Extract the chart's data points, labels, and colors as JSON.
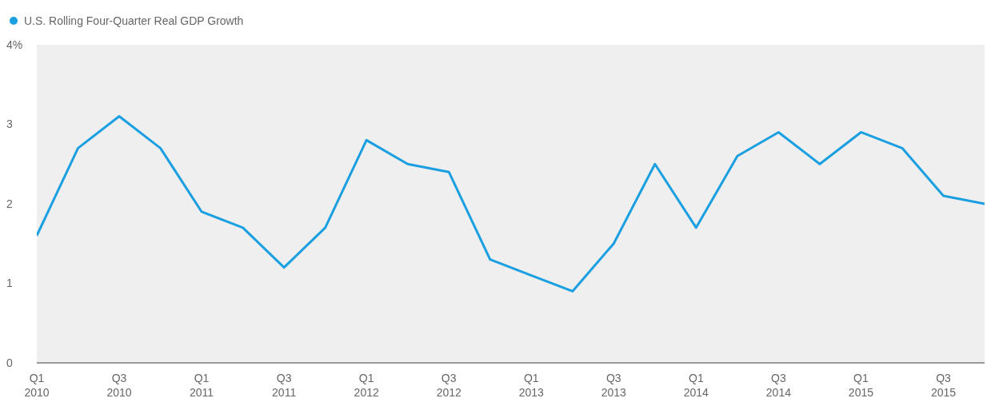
{
  "chart_data": {
    "type": "line",
    "categories": [
      "Q1 2010",
      null,
      "Q3 2010",
      null,
      "Q1 2011",
      null,
      "Q3 2011",
      null,
      "Q1 2012",
      null,
      "Q3 2012",
      null,
      "Q1 2013",
      null,
      "Q3 2013",
      null,
      "Q1 2014",
      null,
      "Q3 2014",
      null,
      "Q1 2015",
      null,
      "Q3 2015",
      null
    ],
    "series": [
      {
        "name": "U.S. Rolling Four-Quarter Real GDP Growth",
        "color": "#1a9fe0",
        "values": [
          1.6,
          2.7,
          3.1,
          2.7,
          1.9,
          1.7,
          1.2,
          1.7,
          2.8,
          2.5,
          2.4,
          1.3,
          1.1,
          0.9,
          1.5,
          2.5,
          1.7,
          2.6,
          2.9,
          2.5,
          2.9,
          2.7,
          2.1,
          2.0
        ]
      }
    ],
    "ylim": [
      0,
      4
    ],
    "yticks": [
      0,
      1,
      2,
      3,
      {
        "value": 4,
        "label": "4%"
      }
    ],
    "legend": "top left",
    "marker": "none",
    "line_style": "solid"
  }
}
